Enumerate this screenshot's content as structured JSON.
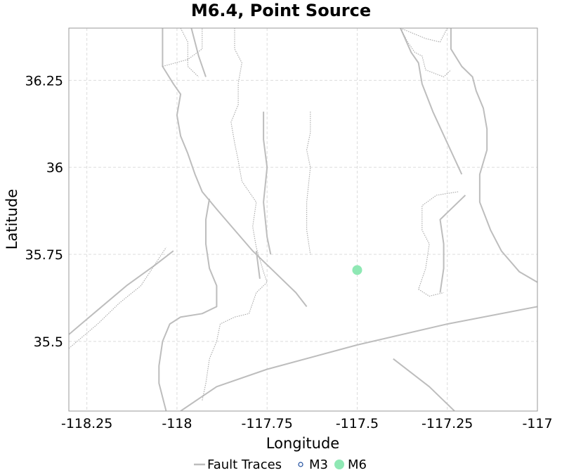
{
  "title": "M6.4, Point Source",
  "axes": {
    "xlabel": "Longitude",
    "ylabel": "Latitude",
    "xlim": [
      -118.3,
      -117.0
    ],
    "ylim": [
      35.3,
      36.4
    ],
    "x_ticks": [
      {
        "value": -118.25,
        "label": "-118.25"
      },
      {
        "value": -118.0,
        "label": "-118"
      },
      {
        "value": -117.75,
        "label": "-117.75"
      },
      {
        "value": -117.5,
        "label": "-117.5"
      },
      {
        "value": -117.25,
        "label": "-117.25"
      },
      {
        "value": -117.0,
        "label": "-117"
      }
    ],
    "y_ticks": [
      {
        "value": 35.5,
        "label": "35.5"
      },
      {
        "value": 35.75,
        "label": "35.75"
      },
      {
        "value": 36.0,
        "label": "36"
      },
      {
        "value": 36.25,
        "label": "36.25"
      }
    ],
    "grid": true
  },
  "colors": {
    "fault": "#bdbdbd",
    "fault_dotted": "#a8a8a8",
    "m3": "#1f4e9e",
    "m6": "#8fe8b4",
    "grid": "#dcdcdc",
    "frame": "#9a9a9a"
  },
  "legend": {
    "placement": "bottom-center",
    "items": [
      {
        "label": "Fault Traces",
        "kind": "line"
      },
      {
        "label": "M3",
        "kind": "hollow-circle"
      },
      {
        "label": "M6",
        "kind": "filled-circle"
      }
    ]
  },
  "events": [
    {
      "lon": -117.5,
      "lat": 35.705,
      "class": "M6"
    }
  ],
  "fault_traces": [
    {
      "style": "solid",
      "coords": [
        [
          -117.96,
          36.4
        ],
        [
          -117.94,
          36.32
        ],
        [
          -117.92,
          36.26
        ]
      ]
    },
    {
      "style": "solid",
      "coords": [
        [
          -118.04,
          36.4
        ],
        [
          -118.04,
          36.34
        ],
        [
          -118.04,
          36.29
        ],
        [
          -118.01,
          36.24
        ],
        [
          -117.99,
          36.21
        ],
        [
          -118.0,
          36.15
        ],
        [
          -117.99,
          36.09
        ],
        [
          -117.97,
          36.04
        ],
        [
          -117.95,
          35.98
        ],
        [
          -117.93,
          35.93
        ],
        [
          -117.89,
          35.88
        ],
        [
          -117.84,
          35.82
        ],
        [
          -117.79,
          35.76
        ],
        [
          -117.73,
          35.7
        ],
        [
          -117.67,
          35.64
        ],
        [
          -117.64,
          35.6
        ]
      ]
    },
    {
      "style": "solid",
      "coords": [
        [
          -117.91,
          35.91
        ],
        [
          -117.92,
          35.85
        ],
        [
          -117.92,
          35.78
        ],
        [
          -117.91,
          35.71
        ],
        [
          -117.89,
          35.66
        ],
        [
          -117.89,
          35.6
        ],
        [
          -117.93,
          35.58
        ],
        [
          -117.99,
          35.57
        ],
        [
          -118.02,
          35.55
        ],
        [
          -118.04,
          35.5
        ],
        [
          -118.05,
          35.43
        ],
        [
          -118.05,
          35.38
        ],
        [
          -118.03,
          35.3
        ]
      ]
    },
    {
      "style": "solid",
      "coords": [
        [
          -117.78,
          35.76
        ],
        [
          -117.77,
          35.68
        ]
      ]
    },
    {
      "style": "solid",
      "coords": [
        [
          -117.99,
          35.3
        ],
        [
          -117.89,
          35.37
        ],
        [
          -117.75,
          35.42
        ],
        [
          -117.5,
          35.49
        ],
        [
          -117.25,
          35.55
        ],
        [
          -117.0,
          35.6
        ]
      ]
    },
    {
      "style": "solid",
      "coords": [
        [
          -117.4,
          35.45
        ],
        [
          -117.3,
          35.37
        ],
        [
          -117.23,
          35.3
        ]
      ]
    },
    {
      "style": "solid",
      "coords": [
        [
          -117.38,
          36.4
        ],
        [
          -117.35,
          36.33
        ],
        [
          -117.33,
          36.3
        ],
        [
          -117.32,
          36.24
        ],
        [
          -117.29,
          36.16
        ],
        [
          -117.25,
          36.07
        ],
        [
          -117.21,
          35.98
        ]
      ]
    },
    {
      "style": "solid",
      "coords": [
        [
          -117.24,
          36.4
        ],
        [
          -117.24,
          36.34
        ],
        [
          -117.21,
          36.29
        ],
        [
          -117.18,
          36.26
        ],
        [
          -117.17,
          36.22
        ],
        [
          -117.15,
          36.17
        ],
        [
          -117.14,
          36.11
        ],
        [
          -117.14,
          36.05
        ],
        [
          -117.16,
          35.98
        ],
        [
          -117.16,
          35.9
        ],
        [
          -117.13,
          35.82
        ],
        [
          -117.1,
          35.76
        ],
        [
          -117.05,
          35.7
        ],
        [
          -117.0,
          35.67
        ]
      ]
    },
    {
      "style": "solid",
      "coords": [
        [
          -118.3,
          35.52
        ],
        [
          -118.22,
          35.59
        ],
        [
          -118.14,
          35.66
        ],
        [
          -118.06,
          35.72
        ],
        [
          -118.01,
          35.76
        ]
      ]
    },
    {
      "style": "solid",
      "coords": [
        [
          -117.76,
          36.16
        ],
        [
          -117.76,
          36.08
        ],
        [
          -117.75,
          36.0
        ],
        [
          -117.76,
          35.9
        ],
        [
          -117.75,
          35.8
        ],
        [
          -117.74,
          35.75
        ]
      ]
    },
    {
      "style": "solid",
      "coords": [
        [
          -117.2,
          35.92
        ],
        [
          -117.27,
          35.85
        ],
        [
          -117.26,
          35.78
        ],
        [
          -117.26,
          35.71
        ],
        [
          -117.27,
          35.64
        ]
      ]
    },
    {
      "style": "dotted",
      "coords": [
        [
          -117.84,
          36.4
        ],
        [
          -117.84,
          36.34
        ],
        [
          -117.82,
          36.3
        ],
        [
          -117.83,
          36.24
        ],
        [
          -117.83,
          36.18
        ],
        [
          -117.85,
          36.13
        ],
        [
          -117.84,
          36.07
        ],
        [
          -117.83,
          36.02
        ],
        [
          -117.82,
          35.96
        ],
        [
          -117.78,
          35.9
        ],
        [
          -117.79,
          35.83
        ],
        [
          -117.78,
          35.77
        ],
        [
          -117.76,
          35.7
        ],
        [
          -117.75,
          35.67
        ],
        [
          -117.78,
          35.64
        ],
        [
          -117.8,
          35.58
        ],
        [
          -117.84,
          35.57
        ],
        [
          -117.88,
          35.55
        ],
        [
          -117.89,
          35.5
        ],
        [
          -117.91,
          35.45
        ],
        [
          -117.92,
          35.38
        ],
        [
          -117.93,
          35.33
        ]
      ]
    },
    {
      "style": "dotted",
      "coords": [
        [
          -117.63,
          36.16
        ],
        [
          -117.63,
          36.1
        ],
        [
          -117.64,
          36.05
        ],
        [
          -117.63,
          36.0
        ],
        [
          -117.64,
          35.9
        ],
        [
          -117.64,
          35.82
        ],
        [
          -117.63,
          35.75
        ]
      ]
    },
    {
      "style": "dotted",
      "coords": [
        [
          -117.38,
          36.4
        ],
        [
          -117.36,
          36.36
        ],
        [
          -117.34,
          36.33
        ],
        [
          -117.32,
          36.32
        ],
        [
          -117.31,
          36.28
        ],
        [
          -117.26,
          36.26
        ],
        [
          -117.24,
          36.28
        ]
      ]
    },
    {
      "style": "dotted",
      "coords": [
        [
          -117.22,
          35.93
        ],
        [
          -117.28,
          35.92
        ],
        [
          -117.32,
          35.89
        ],
        [
          -117.32,
          35.82
        ],
        [
          -117.3,
          35.78
        ],
        [
          -117.31,
          35.71
        ],
        [
          -117.33,
          35.65
        ],
        [
          -117.3,
          35.63
        ],
        [
          -117.26,
          35.64
        ]
      ]
    },
    {
      "style": "dotted",
      "coords": [
        [
          -118.3,
          35.48
        ],
        [
          -118.22,
          35.55
        ],
        [
          -118.16,
          35.61
        ],
        [
          -118.1,
          35.66
        ],
        [
          -118.03,
          35.77
        ]
      ]
    },
    {
      "style": "dotted",
      "coords": [
        [
          -117.99,
          36.4
        ],
        [
          -117.97,
          36.36
        ],
        [
          -117.97,
          36.29
        ],
        [
          -117.94,
          36.26
        ]
      ]
    },
    {
      "style": "dotted",
      "coords": [
        [
          -118.04,
          36.29
        ],
        [
          -117.97,
          36.31
        ],
        [
          -117.93,
          36.34
        ],
        [
          -117.93,
          36.4
        ]
      ]
    },
    {
      "style": "dotted",
      "coords": [
        [
          -117.38,
          36.4
        ],
        [
          -117.31,
          36.37
        ],
        [
          -117.27,
          36.36
        ],
        [
          -117.25,
          36.4
        ]
      ]
    }
  ]
}
